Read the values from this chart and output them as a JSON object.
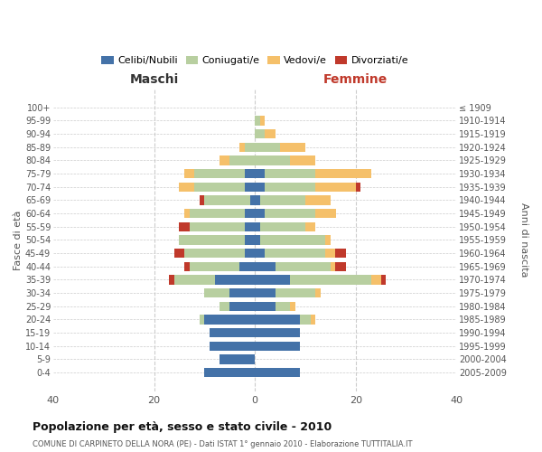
{
  "age_groups": [
    "0-4",
    "5-9",
    "10-14",
    "15-19",
    "20-24",
    "25-29",
    "30-34",
    "35-39",
    "40-44",
    "45-49",
    "50-54",
    "55-59",
    "60-64",
    "65-69",
    "70-74",
    "75-79",
    "80-84",
    "85-89",
    "90-94",
    "95-99",
    "100+"
  ],
  "birth_years": [
    "2005-2009",
    "2000-2004",
    "1995-1999",
    "1990-1994",
    "1985-1989",
    "1980-1984",
    "1975-1979",
    "1970-1974",
    "1965-1969",
    "1960-1964",
    "1955-1959",
    "1950-1954",
    "1945-1949",
    "1940-1944",
    "1935-1939",
    "1930-1934",
    "1925-1929",
    "1920-1924",
    "1915-1919",
    "1910-1914",
    "≤ 1909"
  ],
  "colors": {
    "celibi": "#4472a8",
    "coniugati": "#b8cfa0",
    "vedovi": "#f5c06a",
    "divorziati": "#c0392b"
  },
  "males": {
    "celibi": [
      10,
      7,
      9,
      9,
      10,
      5,
      5,
      8,
      3,
      2,
      2,
      2,
      2,
      1,
      2,
      2,
      0,
      0,
      0,
      0,
      0
    ],
    "coniugati": [
      0,
      0,
      0,
      0,
      1,
      2,
      5,
      8,
      10,
      12,
      13,
      11,
      11,
      9,
      10,
      10,
      5,
      2,
      0,
      0,
      0
    ],
    "vedovi": [
      0,
      0,
      0,
      0,
      0,
      0,
      0,
      0,
      0,
      0,
      0,
      0,
      1,
      0,
      3,
      2,
      2,
      1,
      0,
      0,
      0
    ],
    "divorziati": [
      0,
      0,
      0,
      0,
      0,
      0,
      0,
      1,
      1,
      2,
      0,
      2,
      0,
      1,
      0,
      0,
      0,
      0,
      0,
      0,
      0
    ]
  },
  "females": {
    "nubili": [
      9,
      0,
      9,
      9,
      9,
      4,
      4,
      7,
      4,
      2,
      1,
      1,
      2,
      1,
      2,
      2,
      0,
      0,
      0,
      0,
      0
    ],
    "coniugate": [
      0,
      0,
      0,
      0,
      2,
      3,
      8,
      16,
      11,
      12,
      13,
      9,
      10,
      9,
      10,
      10,
      7,
      5,
      2,
      1,
      0
    ],
    "vedove": [
      0,
      0,
      0,
      0,
      1,
      1,
      1,
      2,
      1,
      2,
      1,
      2,
      4,
      5,
      8,
      11,
      5,
      5,
      2,
      1,
      0
    ],
    "divorziate": [
      0,
      0,
      0,
      0,
      0,
      0,
      0,
      1,
      2,
      2,
      0,
      0,
      0,
      0,
      1,
      0,
      0,
      0,
      0,
      0,
      0
    ]
  },
  "xlim": 40,
  "xticks": [
    -40,
    -20,
    0,
    20,
    40
  ],
  "title": "Popolazione per età, sesso e stato civile - 2010",
  "subtitle": "COMUNE DI CARPINETO DELLA NORA (PE) - Dati ISTAT 1° gennaio 2010 - Elaborazione TUTTITALIA.IT",
  "xlabel_left": "Maschi",
  "xlabel_right": "Femmine",
  "ylabel": "Fasce di età",
  "ylabel_right": "Anni di nascita",
  "legend_labels": [
    "Celibi/Nubili",
    "Coniugati/e",
    "Vedovi/e",
    "Divorziati/e"
  ],
  "bg_color": "#ffffff",
  "grid_color": "#cccccc",
  "text_color": "#555555"
}
